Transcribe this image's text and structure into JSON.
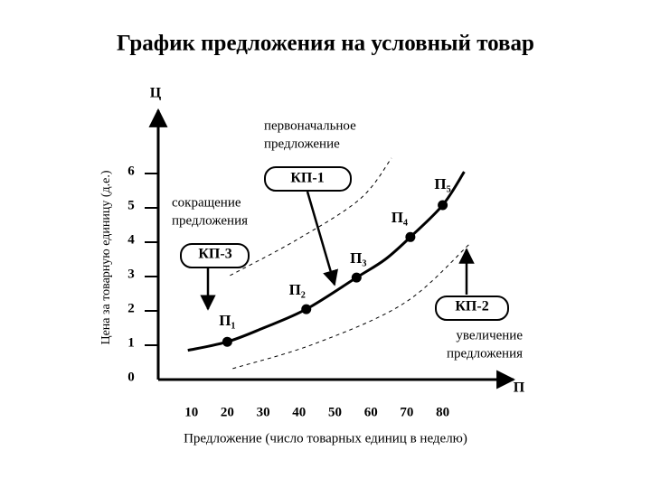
{
  "chart_data": {
    "type": "line",
    "title": "График предложения на условный товар",
    "ylabel": "Цена за товарную единицу (д.е.)",
    "xlabel": "Предложение (число товарных единиц в неделю)",
    "y_symbol": "Ц",
    "x_symbol": "П",
    "xlim": [
      0,
      100
    ],
    "ylim": [
      0,
      8
    ],
    "xticks": [
      10,
      20,
      30,
      40,
      50,
      60,
      70,
      80
    ],
    "yticks": [
      0,
      1,
      2,
      3,
      4,
      5,
      6
    ],
    "series": [
      {
        "color": "#000000",
        "x": [
          9,
          20,
          30,
          42,
          56,
          64,
          71,
          80,
          86
        ],
        "values": [
          0.85,
          1.1,
          1.5,
          2.05,
          2.97,
          3.5,
          4.15,
          5.08,
          6.05
        ]
      }
    ],
    "points": {
      "x": [
        20,
        42,
        56,
        71,
        80
      ],
      "values": [
        1.1,
        2.05,
        2.97,
        4.15,
        5.08
      ],
      "labels": [
        "П₁",
        "П₂",
        "П₃",
        "П₄",
        "П₅"
      ]
    },
    "dashed_curves": [
      {
        "x": [
          20.75,
          39.5,
          57,
          65.75
        ],
        "values": [
          3.03,
          4.08,
          5.26,
          6.45
        ]
      },
      {
        "x": [
          21.5,
          44.5,
          69.5,
          87.5
        ],
        "values": [
          0.32,
          1.05,
          2.24,
          3.95
        ]
      }
    ],
    "annotations": [
      {
        "lines": [
          "первоначальное",
          "предложение"
        ]
      },
      {
        "lines": [
          "КП-1"
        ]
      },
      {
        "lines": [
          "сокращение",
          "предложения"
        ]
      },
      {
        "lines": [
          "КП-3"
        ]
      },
      {
        "lines": [
          "КП-2"
        ]
      },
      {
        "lines": [
          "увеличение",
          "предложения"
        ]
      }
    ]
  }
}
